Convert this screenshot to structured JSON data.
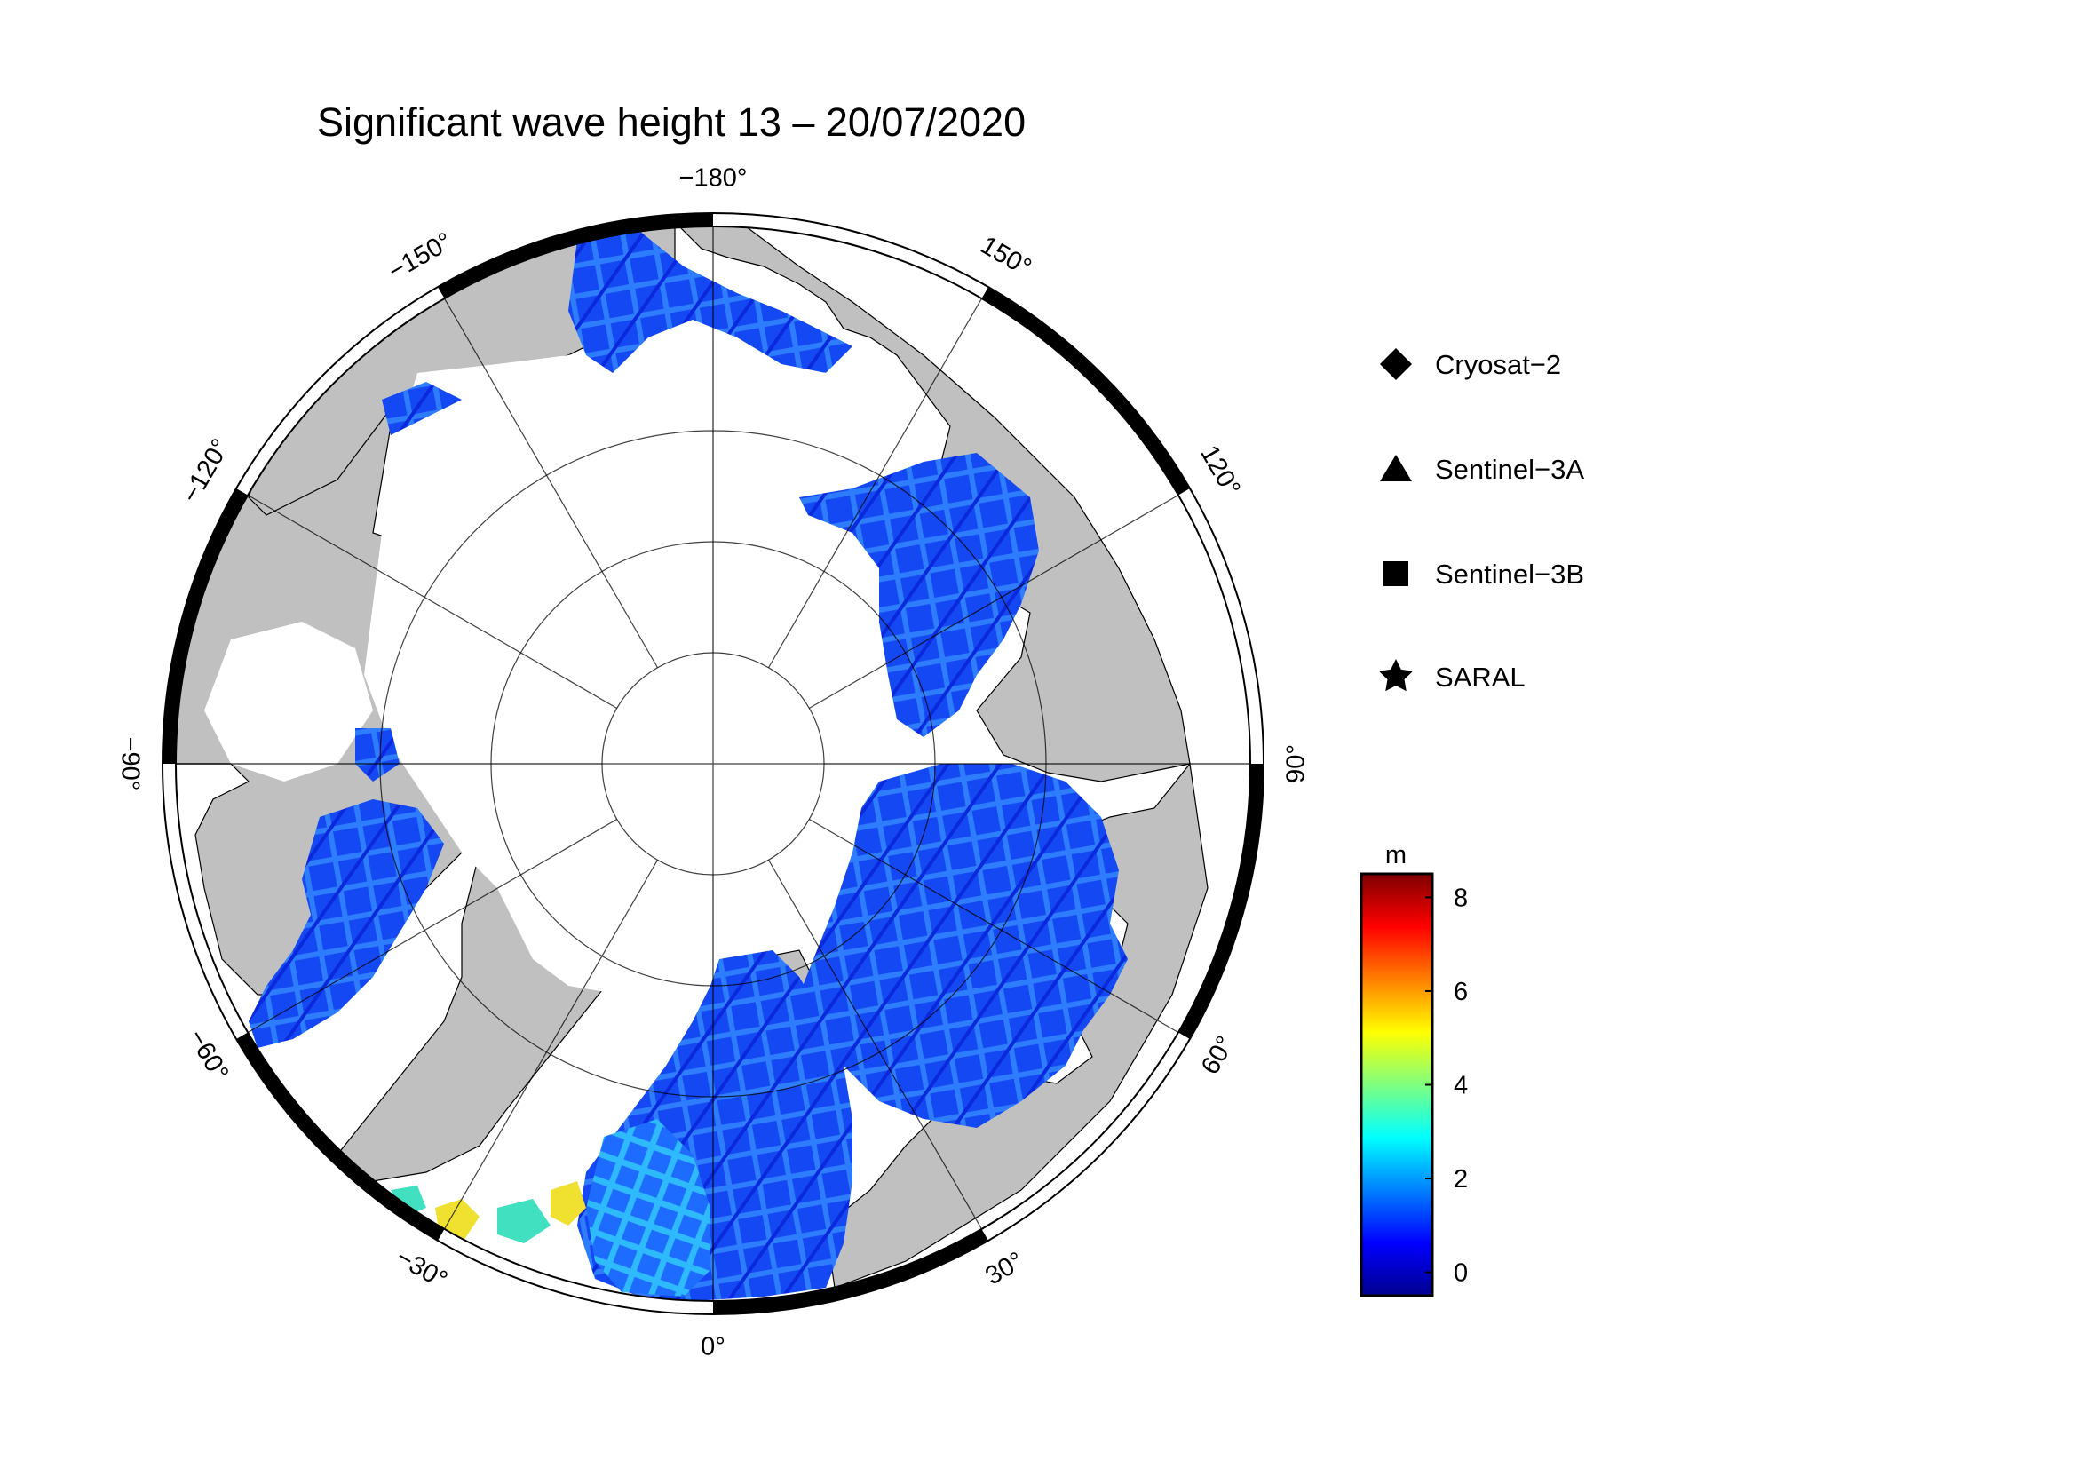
{
  "title": "Significant wave height 13 – 20/07/2020",
  "longitude_labels": [
    {
      "text": "−180°",
      "lon": 180
    },
    {
      "text": "150°",
      "lon": 150
    },
    {
      "text": "120°",
      "lon": 120
    },
    {
      "text": "90°",
      "lon": 90
    },
    {
      "text": "60°",
      "lon": 60
    },
    {
      "text": "30°",
      "lon": 30
    },
    {
      "text": "0°",
      "lon": 0
    },
    {
      "text": "−30°",
      "lon": -30
    },
    {
      "text": "−60°",
      "lon": -60
    },
    {
      "text": "−90°",
      "lon": -90
    },
    {
      "text": "−120°",
      "lon": -120
    },
    {
      "text": "−150°",
      "lon": -150
    }
  ],
  "legend": {
    "items": [
      {
        "label": "Cryosat−2",
        "symbol": "diamond"
      },
      {
        "label": "Sentinel−3A",
        "symbol": "triangle"
      },
      {
        "label": "Sentinel−3B",
        "symbol": "square"
      },
      {
        "label": "SARAL",
        "symbol": "star"
      }
    ]
  },
  "colorbar": {
    "unit": "m",
    "ticks": [
      "0",
      "2",
      "4",
      "6",
      "8"
    ],
    "range": [
      -0.5,
      8.5
    ],
    "colormap": [
      "#00008f",
      "#0000ff",
      "#007fff",
      "#00ffff",
      "#7fff7f",
      "#ffff00",
      "#ff7f00",
      "#ff0000",
      "#7f0000"
    ]
  },
  "colors": {
    "land": "#c0c0c0",
    "ice": "#ffffff",
    "data": "#1040f0",
    "frame": "#000000"
  }
}
